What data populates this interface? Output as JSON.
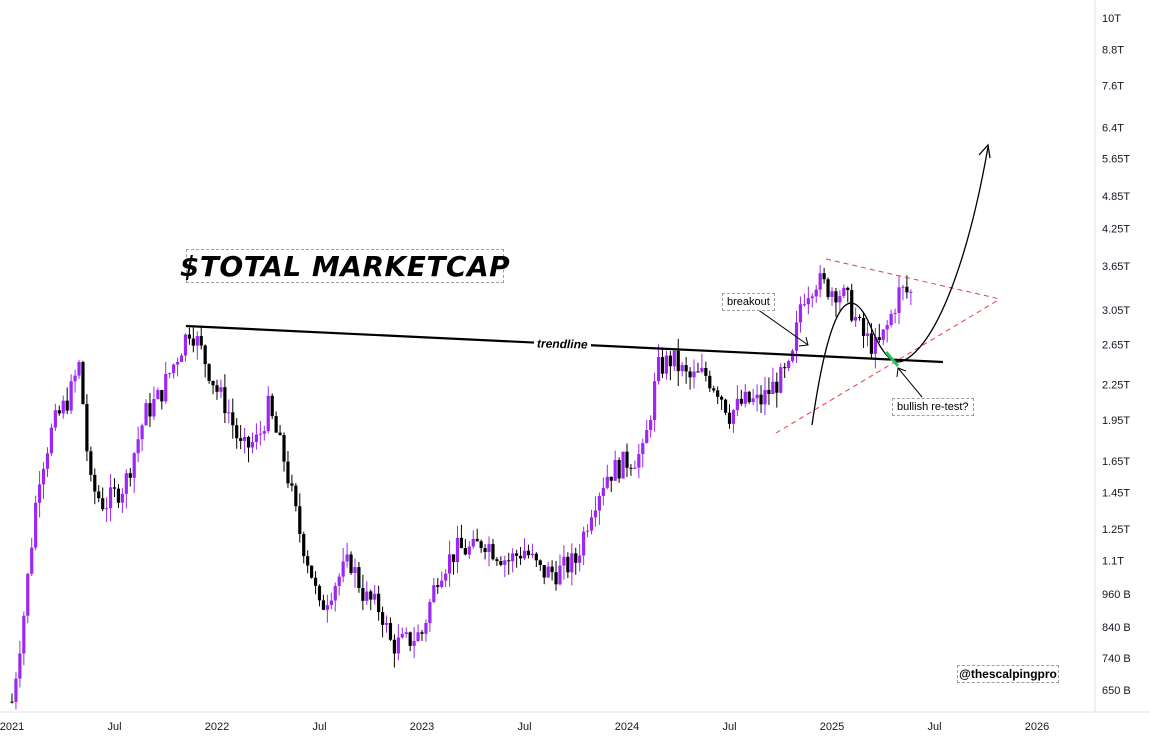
{
  "chart_data": {
    "type": "candlestick",
    "title": "$TOTAL MARKETCAP",
    "y_scale": "log",
    "ylim": [
      "600B",
      "11T"
    ],
    "y_ticks": [
      "10T",
      "8.8T",
      "7.6T",
      "6.4T",
      "5.65T",
      "4.85T",
      "4.25T",
      "3.65T",
      "3.05T",
      "2.65T",
      "2.25T",
      "1.95T",
      "1.65T",
      "1.45T",
      "1.25T",
      "1.1T",
      "960 B",
      "840 B",
      "740 B",
      "650 B"
    ],
    "y_tick_values": [
      10000,
      8800,
      7600,
      6400,
      5650,
      4850,
      4250,
      3650,
      3050,
      2650,
      2250,
      1950,
      1650,
      1450,
      1250,
      1100,
      960,
      840,
      740,
      650
    ],
    "x_ticks": [
      "2021",
      "Jul",
      "2022",
      "Jul",
      "2023",
      "Jul",
      "2024",
      "Jul",
      "2025",
      "Jul",
      "2026"
    ],
    "x_tick_values": [
      2021.0,
      2021.5,
      2022.0,
      2022.5,
      2023.0,
      2023.5,
      2024.0,
      2024.5,
      2025.0,
      2025.5,
      2026.0
    ],
    "xlim": [
      2021.0,
      2026.15
    ],
    "colors": {
      "up": "#9c27f5",
      "down": "#000000",
      "triangle": "#f23645",
      "retest_highlight": "#22c55e"
    },
    "anchors_billions": [
      [
        2021.0,
        620
      ],
      [
        2021.06,
        900
      ],
      [
        2021.13,
        1550
      ],
      [
        2021.2,
        1900
      ],
      [
        2021.28,
        2150
      ],
      [
        2021.33,
        2450
      ],
      [
        2021.38,
        1500
      ],
      [
        2021.45,
        1380
      ],
      [
        2021.55,
        1500
      ],
      [
        2021.65,
        2000
      ],
      [
        2021.72,
        2150
      ],
      [
        2021.8,
        2500
      ],
      [
        2021.87,
        2850
      ],
      [
        2021.92,
        2600
      ],
      [
        2022.0,
        2200
      ],
      [
        2022.05,
        2050
      ],
      [
        2022.12,
        1720
      ],
      [
        2022.2,
        1800
      ],
      [
        2022.25,
        2050
      ],
      [
        2022.33,
        1650
      ],
      [
        2022.4,
        1250
      ],
      [
        2022.46,
        1050
      ],
      [
        2022.5,
        900
      ],
      [
        2022.57,
        1000
      ],
      [
        2022.65,
        1100
      ],
      [
        2022.72,
        950
      ],
      [
        2022.8,
        900
      ],
      [
        2022.85,
        780
      ],
      [
        2022.92,
        790
      ],
      [
        2023.0,
        820
      ],
      [
        2023.08,
        1050
      ],
      [
        2023.17,
        1150
      ],
      [
        2023.25,
        1150
      ],
      [
        2023.3,
        1200
      ],
      [
        2023.35,
        1150
      ],
      [
        2023.42,
        1100
      ],
      [
        2023.5,
        1150
      ],
      [
        2023.58,
        1050
      ],
      [
        2023.66,
        1050
      ],
      [
        2023.75,
        1100
      ],
      [
        2023.83,
        1380
      ],
      [
        2023.9,
        1560
      ],
      [
        2024.0,
        1650
      ],
      [
        2024.08,
        1700
      ],
      [
        2024.15,
        2400
      ],
      [
        2024.22,
        2500
      ],
      [
        2024.3,
        2300
      ],
      [
        2024.38,
        2350
      ],
      [
        2024.45,
        2200
      ],
      [
        2024.5,
        2000
      ],
      [
        2024.57,
        2100
      ],
      [
        2024.65,
        2100
      ],
      [
        2024.72,
        2250
      ],
      [
        2024.8,
        2400
      ],
      [
        2024.85,
        3200
      ],
      [
        2024.92,
        3450
      ],
      [
        2024.97,
        3350
      ],
      [
        2025.03,
        3300
      ],
      [
        2025.08,
        3150
      ],
      [
        2025.15,
        2750
      ],
      [
        2025.22,
        2600
      ],
      [
        2025.27,
        2850
      ],
      [
        2025.33,
        3300
      ],
      [
        2025.4,
        3250
      ]
    ],
    "annotations": [
      {
        "text": "trendline",
        "kind": "line"
      },
      {
        "text": "breakout",
        "kind": "callout"
      },
      {
        "text": "bullish re-test?",
        "kind": "callout"
      },
      {
        "kind": "symmetrical-triangle"
      },
      {
        "kind": "projected-curve-up"
      }
    ],
    "watermark": "@thescalpingpro"
  }
}
